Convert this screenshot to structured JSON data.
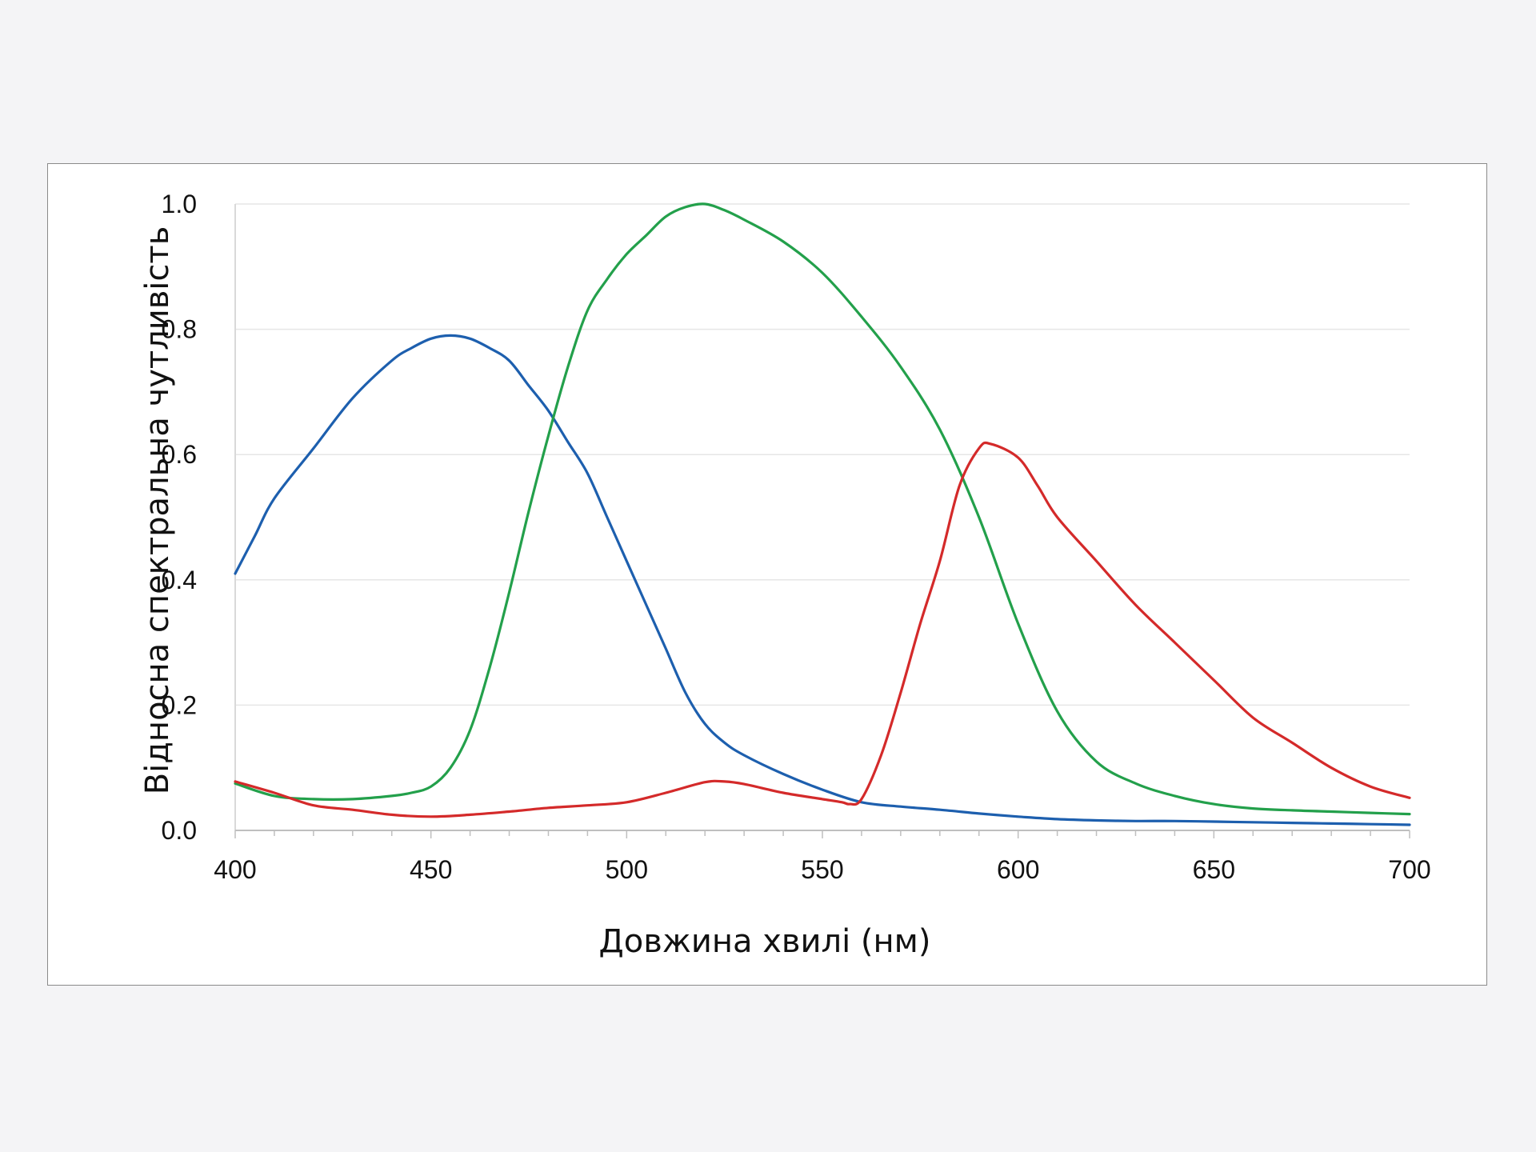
{
  "chart_data": {
    "type": "line",
    "title": "",
    "xlabel": "Довжина хвилі (нм)",
    "ylabel": "Відносна спектральна чутливість",
    "xlim": [
      400,
      700
    ],
    "ylim": [
      0,
      1.0
    ],
    "x_ticks": [
      "400",
      "450",
      "500",
      "550",
      "600",
      "650",
      "700"
    ],
    "y_ticks": [
      "0.0",
      "0.2",
      "0.4",
      "0.6",
      "0.8",
      "1.0"
    ],
    "grid": "horizontal",
    "legend": "none",
    "series": [
      {
        "color": "#1d5fae",
        "x": [
          400,
          405,
          410,
          420,
          430,
          440,
          445,
          450,
          455,
          460,
          465,
          470,
          475,
          480,
          485,
          490,
          495,
          500,
          505,
          510,
          515,
          520,
          525,
          530,
          540,
          550,
          560,
          570,
          580,
          590,
          600,
          610,
          620,
          630,
          640,
          650,
          660,
          670,
          680,
          690,
          700
        ],
        "y": [
          0.41,
          0.47,
          0.53,
          0.61,
          0.69,
          0.75,
          0.77,
          0.785,
          0.79,
          0.785,
          0.77,
          0.75,
          0.71,
          0.67,
          0.62,
          0.57,
          0.5,
          0.43,
          0.36,
          0.29,
          0.22,
          0.17,
          0.14,
          0.12,
          0.09,
          0.065,
          0.045,
          0.038,
          0.033,
          0.027,
          0.022,
          0.018,
          0.016,
          0.015,
          0.015,
          0.014,
          0.013,
          0.012,
          0.011,
          0.01,
          0.009
        ]
      },
      {
        "color": "#23a04b",
        "x": [
          400,
          410,
          420,
          430,
          440,
          445,
          450,
          455,
          460,
          465,
          470,
          475,
          480,
          485,
          490,
          495,
          500,
          505,
          510,
          515,
          520,
          525,
          530,
          540,
          550,
          560,
          570,
          580,
          590,
          600,
          610,
          620,
          630,
          640,
          650,
          660,
          670,
          680,
          690,
          700
        ],
        "y": [
          0.075,
          0.055,
          0.05,
          0.05,
          0.055,
          0.06,
          0.07,
          0.1,
          0.16,
          0.26,
          0.38,
          0.51,
          0.63,
          0.74,
          0.83,
          0.88,
          0.92,
          0.95,
          0.98,
          0.995,
          1.0,
          0.99,
          0.975,
          0.94,
          0.89,
          0.82,
          0.74,
          0.64,
          0.5,
          0.33,
          0.19,
          0.11,
          0.075,
          0.055,
          0.042,
          0.035,
          0.032,
          0.03,
          0.028,
          0.026
        ]
      },
      {
        "color": "#d42a2a",
        "x": [
          400,
          410,
          420,
          430,
          440,
          450,
          460,
          470,
          480,
          490,
          500,
          510,
          520,
          525,
          530,
          540,
          550,
          555,
          557,
          560,
          565,
          570,
          575,
          580,
          585,
          590,
          593,
          600,
          605,
          610,
          620,
          630,
          640,
          650,
          660,
          670,
          680,
          690,
          700
        ],
        "y": [
          0.078,
          0.06,
          0.04,
          0.033,
          0.025,
          0.022,
          0.025,
          0.03,
          0.036,
          0.04,
          0.045,
          0.06,
          0.077,
          0.078,
          0.074,
          0.06,
          0.05,
          0.045,
          0.042,
          0.05,
          0.12,
          0.22,
          0.33,
          0.43,
          0.55,
          0.61,
          0.617,
          0.595,
          0.55,
          0.5,
          0.43,
          0.36,
          0.3,
          0.24,
          0.18,
          0.14,
          0.1,
          0.07,
          0.052
        ]
      }
    ]
  }
}
